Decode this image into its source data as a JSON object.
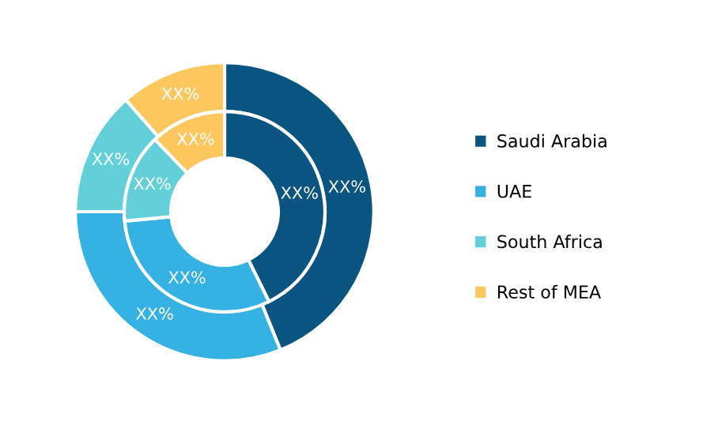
{
  "chart_data": {
    "type": "donut",
    "categories": [
      "Saudi Arabia",
      "UAE",
      "South Africa",
      "Rest of MEA"
    ],
    "colors": [
      "#0a5482",
      "#35b1e3",
      "#62cfd9",
      "#fdc75f"
    ],
    "series": [
      {
        "values": [
          43.9,
          31.1,
          13.5,
          11.5
        ],
        "value_labels": [
          "XX%",
          "XX%",
          "XX%",
          "XX%"
        ]
      },
      {
        "values": [
          42.7,
          30.8,
          14.3,
          12.2
        ],
        "value_labels": [
          "XX%",
          "XX%",
          "XX%",
          "XX%"
        ]
      }
    ],
    "legend": "right"
  }
}
